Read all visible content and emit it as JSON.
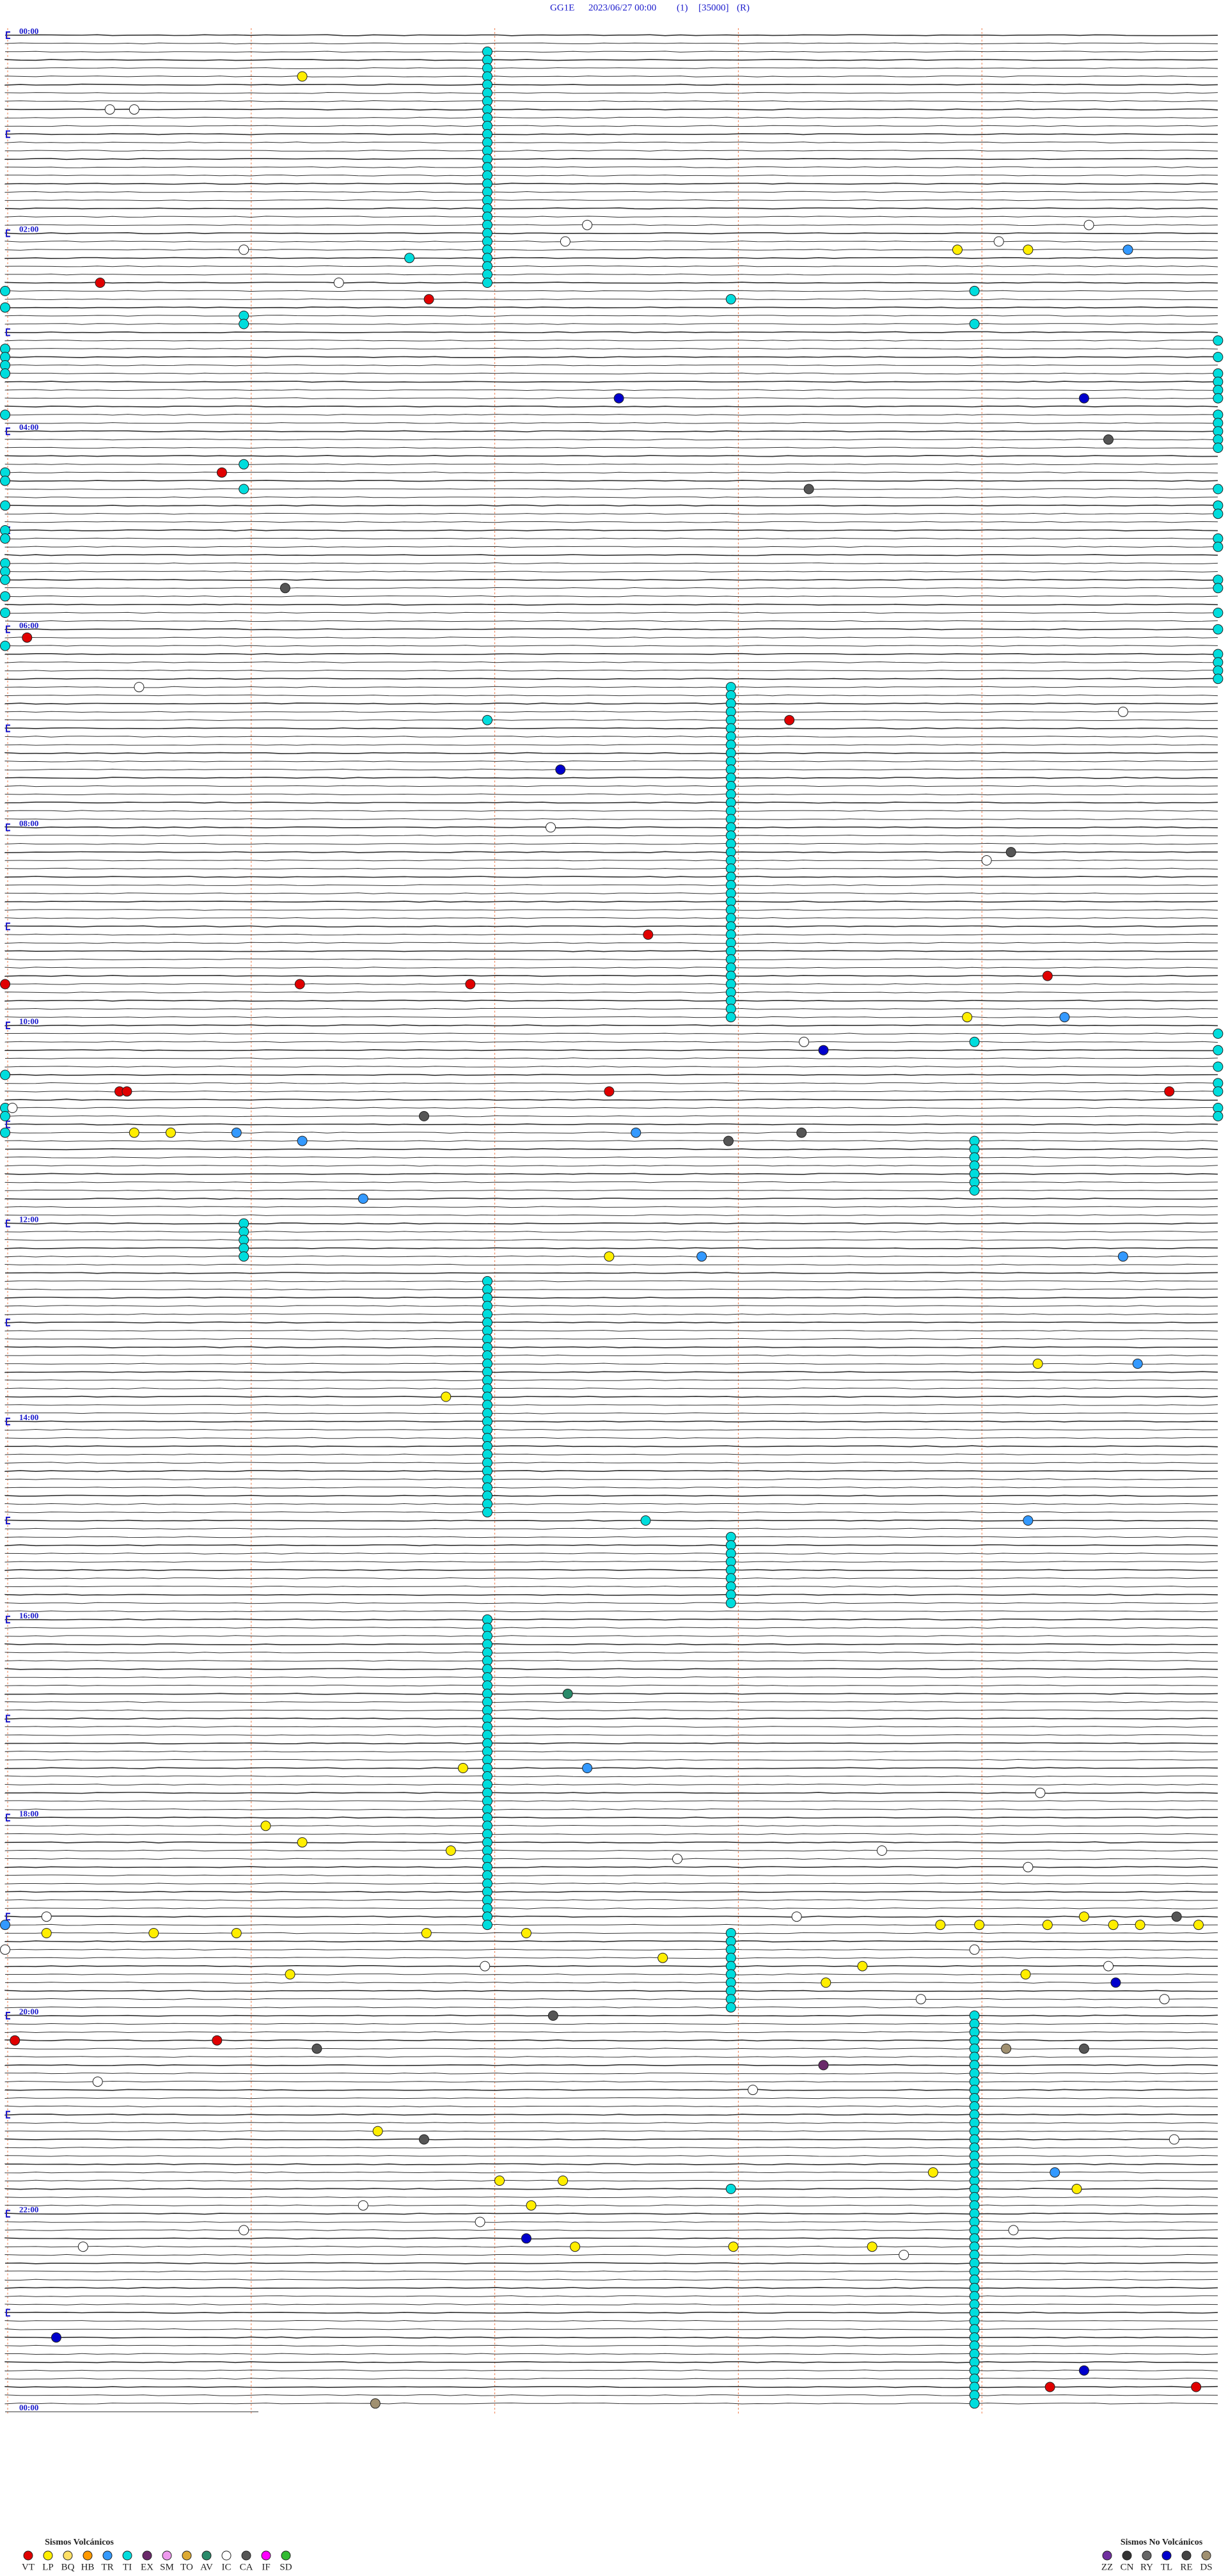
{
  "header": {
    "station": "GG1E",
    "date": "2023/06/27 00:00",
    "channel": "(1)",
    "scale": "[35000]",
    "mode": "(R)"
  },
  "time_labels": [
    "00:00",
    "02:00",
    "04:00",
    "06:00",
    "08:00",
    "10:00",
    "12:00",
    "14:00",
    "16:00",
    "18:00",
    "20:00",
    "22:00",
    "00:00"
  ],
  "legend_volcanic": {
    "title": "Sismos Volcánicos",
    "items": [
      {
        "code": "VT",
        "color": "#e00000"
      },
      {
        "code": "LP",
        "color": "#ffee00"
      },
      {
        "code": "BQ",
        "color": "#ffe066"
      },
      {
        "code": "HB",
        "color": "#ff9900"
      },
      {
        "code": "TR",
        "color": "#3399ff"
      },
      {
        "code": "TI",
        "color": "#00dddd"
      },
      {
        "code": "EX",
        "color": "#6a2a6a"
      },
      {
        "code": "SM",
        "color": "#ee99ee"
      },
      {
        "code": "TO",
        "color": "#ddaa33"
      },
      {
        "code": "AV",
        "color": "#2a8a6a"
      },
      {
        "code": "IC",
        "color": "#ffffff"
      },
      {
        "code": "CA",
        "color": "#555555"
      },
      {
        "code": "IF",
        "color": "#ff00ff"
      },
      {
        "code": "SD",
        "color": "#33bb33"
      }
    ]
  },
  "legend_nonvolcanic": {
    "title": "Sismos No Volcánicos",
    "items": [
      {
        "code": "ZZ",
        "color": "#7030a0"
      },
      {
        "code": "CN",
        "color": "#333333"
      },
      {
        "code": "RY",
        "color": "#666666"
      },
      {
        "code": "TL",
        "color": "#0000cc"
      },
      {
        "code": "RE",
        "color": "#444444"
      },
      {
        "code": "DS",
        "color": "#a09070"
      }
    ]
  },
  "events": [
    {
      "code": "TI",
      "t": [
        11.98,
        16.98,
        21.98,
        26.98,
        31.98,
        36.98,
        41.98,
        46.98,
        51.98,
        56.98,
        61.98,
        66.98,
        71.98,
        76.98,
        81.98,
        86.98,
        91.98,
        96.98,
        101.98,
        106.98,
        111.98,
        116.98,
        121.98,
        126.98,
        131.98,
        136.98,
        141.98,
        146.98,
        151.98,
        170.98,
        175.98,
        260.98,
        275.98,
        162.98,
        158.98,
        178.98,
        189.98,
        199.98,
        209.98,
        214.98,
        219.98,
        224.98,
        234.98,
        239.98,
        244.98,
        249.98,
        254.98,
        279.98,
        289.98,
        294.98,
        309.98,
        314.98,
        334.98,
        339.98,
        354.98,
        364.98,
        379.98,
        384.98,
        389.98,
        394.98,
        609.98,
        619.98,
        629.98,
        639.98,
        644.98,
        654.98,
        659.98,
        155,
        165,
        190,
        195,
        200,
        205,
        230,
        265,
        270,
        285,
        300,
        305,
        320,
        325,
        330,
        340,
        350,
        370,
        630,
        650,
        655,
        665,
        397.98,
        402.98,
        407.98,
        412.98,
        417.98,
        422.98,
        427.98,
        432.98,
        437.98,
        442.98,
        447.98,
        452.98,
        457.98,
        462.98,
        467.98,
        472.98,
        477.98,
        482.98,
        487.98,
        492.98,
        497.98,
        502.98,
        507.98,
        512.98,
        517.98,
        522.98,
        527.98,
        532.98,
        537.98,
        542.98,
        547.98,
        552.98,
        557.98,
        562.98,
        567.98,
        572.98,
        577.98,
        582.98,
        587.98,
        592.98,
        597.98,
        673.98,
        678.98,
        683.98,
        688.98,
        693.98,
        698.98,
        703.98,
        613.98,
        416.98,
        902.63,
        1307.98,
        1303.98,
        136.66,
        720.98,
        725.98,
        730.98,
        735.98,
        740.98,
        756.98,
        761.98,
        766.98,
        771.98,
        776.98,
        781.98,
        786.98,
        791.98,
        796.98,
        801.98,
        806.98,
        811.98,
        816.98,
        821.98,
        826.98,
        831.98,
        836.98,
        841.98,
        846.98,
        851.98,
        856.98,
        861.98,
        866.98,
        871.98,
        876.98,
        881.98,
        886.98,
        891.98,
        896.98,
        912.98,
        917.98,
        922.98,
        927.98,
        932.98,
        937.98,
        942.98,
        947.98,
        952.98,
        961.98,
        966.98,
        971.98,
        976.98,
        981.98,
        986.98,
        991.98,
        996.98,
        1001.98,
        1006.98,
        1011.98,
        1016.98,
        1021.98,
        1026.98,
        1031.98,
        1036.98,
        1041.98,
        1046.98,
        1051.98,
        1056.98,
        1061.98,
        1066.98,
        1071.98,
        1076.98,
        1081.98,
        1086.98,
        1091.98,
        1096.98,
        1101.98,
        1106.98,
        1111.98,
        1116.98,
        1121.98,
        1126.98,
        1131.98,
        1136.98,
        1141.98,
        1146.98,
        1152.98,
        1157.98,
        1162.98,
        1167.98,
        1172.98,
        1177.98,
        1182.98,
        1187.98,
        1192.98,
        1197.98,
        1203.98,
        1208.98,
        1213.98,
        1218.98,
        1223.98,
        1228.98,
        1233.98,
        1238.98,
        1243.98,
        1248.98,
        1253.98,
        1258.98,
        1263.98,
        1268.98,
        1273.98,
        1278.98,
        1283.98,
        1288.98,
        1293.98,
        1298.98,
        1308.98,
        1313.98,
        1318.98,
        1323.98,
        1328.98,
        1333.98,
        1338.98,
        1343.98,
        1348.98,
        1353.98,
        1358.98,
        1363.98,
        1368.98,
        1373.98,
        1378.98,
        1383.98,
        1388.98,
        1393.98,
        1398.98,
        1403.98,
        1408.98,
        1413.98,
        1418.98,
        1423.98,
        1428.98,
        1433.98,
        1438.98
      ]
    },
    {
      "code": "LP",
      "t": [
        26.22,
        133.91,
        134.2,
        598.95,
        665.53,
        665.68,
        742.48,
        809.24,
        826.81,
        1051.88,
        1086.07,
        1096.22,
        1101.83,
        1150.17,
        1150.61,
        1150.95,
        1151.73,
        1152.14,
        1148.84,
        1149,
        1149.28,
        1144.43,
        1149.55,
        1149.66,
        1149.9,
        1167.7,
        1173.52,
        1176.17,
        1179.19,
        1183.37,
        1271.53,
        1298.81,
        1302.03,
        1302.29,
        1309.4,
        1317.16,
        1342.34,
        1342.99,
        1343.56
      ]
    },
    {
      "code": "IC",
      "t": [
        45.43,
        45.53,
        117.39,
        127.3,
        130.98,
        151.37,
        129.08,
        119.45,
        395.55,
        414.59,
        482.24,
        504.03,
        613.28,
        650.03,
        1069.25,
        1107.76,
        1103.6,
        1114.2,
        1140.17,
        1143.25,
        1160,
        1171.97,
        1163.98,
        1174.53,
        1193.76,
        1194.76,
        1240.38,
        1248.07,
        1279.8,
        1316.47,
        1326.95,
        1330.98,
        1340.32,
        1348.69,
        1334.14
      ]
    },
    {
      "code": "TR",
      "t": [
        134.61,
        599.35,
        665.95,
        671.22,
        667.59,
        706.47,
        742.86,
        744.59,
        809.65,
        904.2,
        1052.39,
        1145,
        1299.31
      ]
    },
    {
      "code": "VT",
      "t": [
        150.39,
        161.74,
        265.89,
        365.09,
        418.22,
        547.64,
        574.28,
        575,
        576.21,
        576.91,
        640.47,
        640.5,
        642.48,
        644.78,
        1215.04,
        1215.87,
        1429.29,
        1429.89
      ]
    },
    {
      "code": "TL",
      "t": [
        222.52,
        224.43,
        447.28,
        618.36,
        1184.56,
        1337.14,
        1395.21,
        1419.43
      ]
    },
    {
      "code": "CA",
      "t": [
        249.53,
        278.3,
        336.15,
        656.72,
        672.97,
        668.27,
        499.13,
        1144.81,
        1221.28,
        1202.25,
        1224.43,
        1276.72
      ]
    },
    {
      "code": "AV",
      "t": [
        1007.31
      ]
    },
    {
      "code": "EX",
      "t": [
        1233.36
      ]
    },
    {
      "code": "DS",
      "t": [
        1436.52,
        1224.11
      ]
    }
  ]
}
